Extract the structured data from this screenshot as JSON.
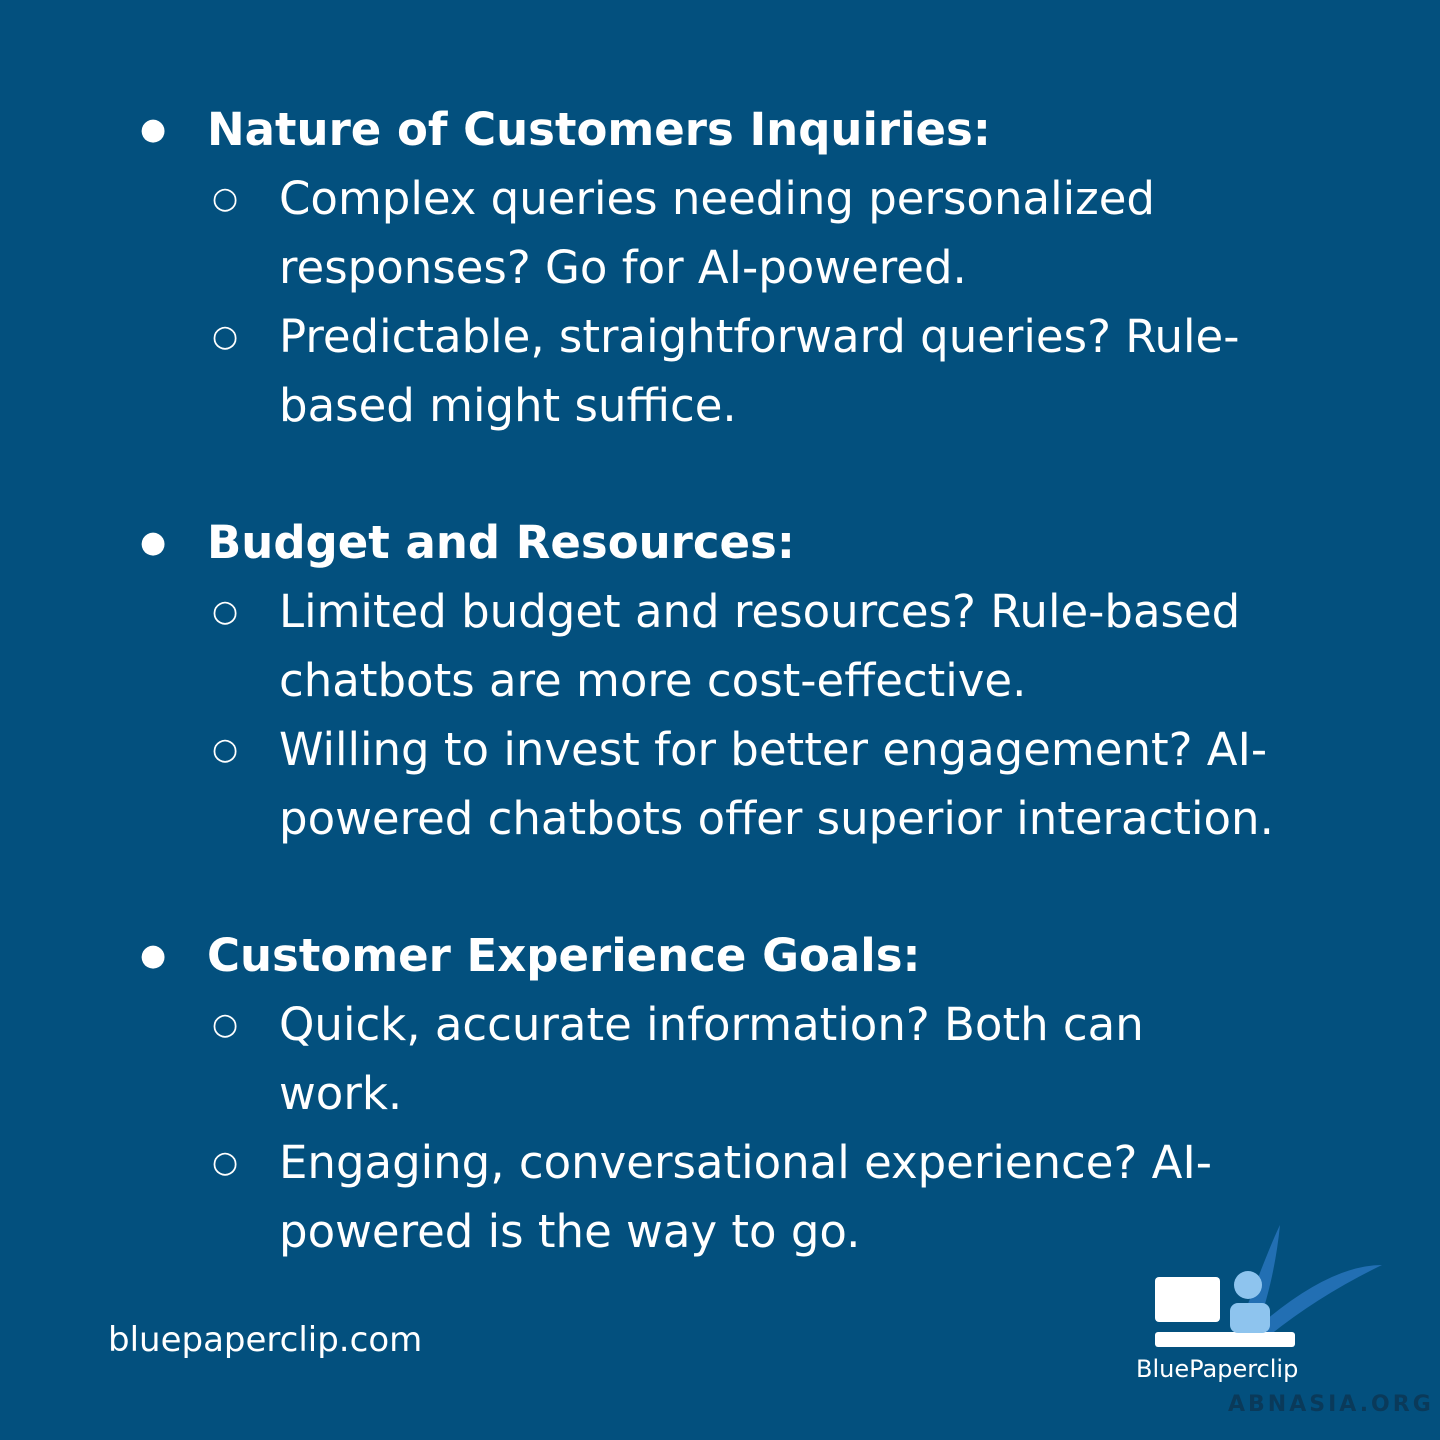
{
  "sections": [
    {
      "heading": "Nature of Customers Inquiries:",
      "items": [
        "Complex queries needing personalized responses? Go for AI-powered.",
        "Predictable, straightforward queries? Rule-based might suffice."
      ]
    },
    {
      "heading": "Budget and Resources:",
      "items": [
        "Limited budget and resources? Rule-based chatbots are more cost-effective.",
        "Willing to invest for better engagement? AI-powered chatbots offer superior interaction."
      ]
    },
    {
      "heading": "Customer Experience Goals:",
      "items": [
        "Quick, accurate information? Both can work.",
        "Engaging, conversational experience? AI-powered is the way to go."
      ]
    }
  ],
  "footer": {
    "website": "bluepaperclip.com",
    "logo": "BluePaperclip",
    "watermark": "ABNASIA.ORG"
  }
}
